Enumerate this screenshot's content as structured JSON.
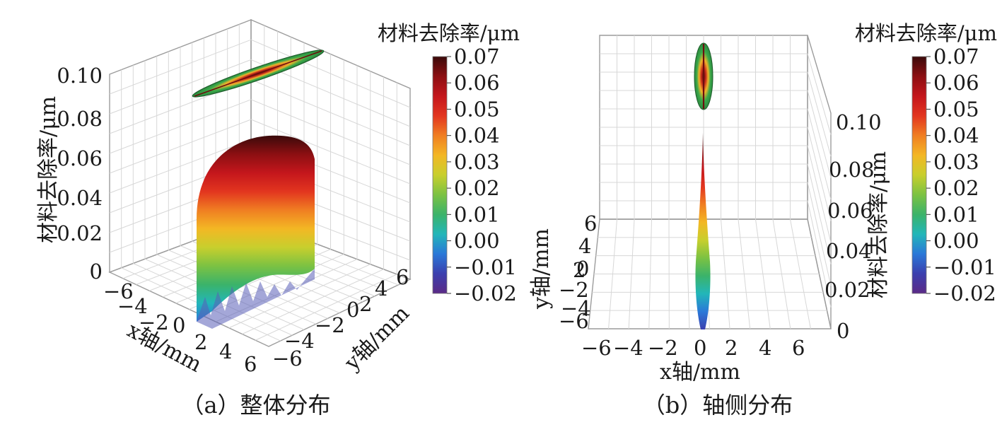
{
  "colors": {
    "colormap": [
      "#5b2a86",
      "#3b3fae",
      "#2a78d8",
      "#22b6b9",
      "#3bb36a",
      "#7cc242",
      "#c8cf2d",
      "#f3b724",
      "#f07e22",
      "#e2351f",
      "#c4161c",
      "#8c0f12",
      "#3a0a0a"
    ],
    "grid": "#d7d7d7",
    "frame": "#9c9c9c",
    "ellipse_fill": "#3aa84a"
  },
  "chart_data": [
    {
      "type": "surface3d",
      "caption": "（a）整体分布",
      "zlabel": "材料去除率/μm",
      "xlabel": "x轴/mm",
      "ylabel": "y轴/mm",
      "colorbar_label": "材料去除率/μm",
      "z_ticks": [
        "0",
        "0.02",
        "0.04",
        "0.06",
        "0.08",
        "0.10"
      ],
      "x_ticks": [
        "−6",
        "−4",
        "−2",
        "0",
        "2",
        "4",
        "6"
      ],
      "y_ticks": [
        "−6",
        "−4",
        "−2",
        "0",
        "2",
        "4",
        "6"
      ],
      "colorbar_ticks": [
        "0.07",
        "0.06",
        "0.05",
        "0.04",
        "0.03",
        "0.02",
        "0.01",
        "0.00",
        "−0.01",
        "−0.02"
      ],
      "xlim": [
        -6,
        6
      ],
      "ylim": [
        -6,
        6
      ],
      "zlim": [
        0,
        0.1
      ],
      "clim": [
        -0.02,
        0.07
      ],
      "surface_peak": 0.07,
      "grid": true
    },
    {
      "type": "surface3d",
      "caption": "（b）轴侧分布",
      "zlabel": "材料去除率/μm",
      "xlabel": "x轴/mm",
      "ylabel": "y轴/mm",
      "colorbar_label": "材料去除率/μm",
      "z_ticks": [
        "0",
        "0.02",
        "0.04",
        "0.06",
        "0.08",
        "0.10"
      ],
      "x_ticks": [
        "−6",
        "−4",
        "−2",
        "0",
        "2",
        "4",
        "6"
      ],
      "y_ticks": [
        "6",
        "4",
        "2",
        "0",
        "−2",
        "−4",
        "−6"
      ],
      "colorbar_ticks": [
        "0.07",
        "0.06",
        "0.05",
        "0.04",
        "0.03",
        "0.02",
        "0.01",
        "0.00",
        "−0.01",
        "−0.02"
      ],
      "xlim": [
        -6,
        6
      ],
      "ylim": [
        -6,
        6
      ],
      "zlim": [
        0,
        0.1
      ],
      "clim": [
        -0.02,
        0.07
      ],
      "grid": true
    }
  ]
}
